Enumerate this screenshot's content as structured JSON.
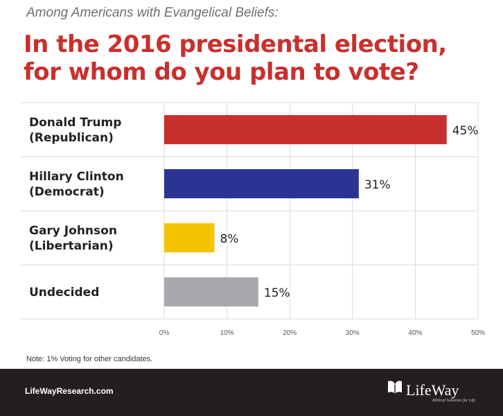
{
  "header": {
    "subtitle": "Among Americans with Evangelical Beliefs:",
    "title_line1": "In the 2016 presidental election,",
    "title_line2": "for whom do you plan to vote?"
  },
  "chart_data": {
    "type": "bar",
    "orientation": "horizontal",
    "title": "In the 2016 presidental election, for whom do you plan to vote?",
    "subtitle": "Among Americans with Evangelical Beliefs:",
    "categories": [
      [
        "Donald Trump",
        "(Republican)"
      ],
      [
        "Hillary Clinton",
        "(Democrat)"
      ],
      [
        "Gary Johnson",
        "(Libertarian)"
      ],
      [
        "Undecided"
      ]
    ],
    "values": [
      45,
      31,
      8,
      15
    ],
    "value_labels": [
      "45%",
      "31%",
      "8%",
      "15%"
    ],
    "colors": [
      "#c8302d",
      "#2a3593",
      "#f5c400",
      "#a7a9ac"
    ],
    "xlim": [
      0,
      50
    ],
    "xticks": [
      0,
      10,
      20,
      30,
      40,
      50
    ],
    "xtick_labels": [
      "0%",
      "10%",
      "20%",
      "30%",
      "40%",
      "50%"
    ],
    "xlabel": "",
    "ylabel": "",
    "grid": true
  },
  "note": "Note: 1% Voting for other candidates.",
  "footer": {
    "site": "LifeWayResearch.com",
    "logo_name": "LifeWay",
    "logo_tagline": "Biblical Solutions for Life"
  },
  "colors": {
    "accent": "#c8302d",
    "footer_bg": "#231f20",
    "grid": "#d9d9d9"
  }
}
